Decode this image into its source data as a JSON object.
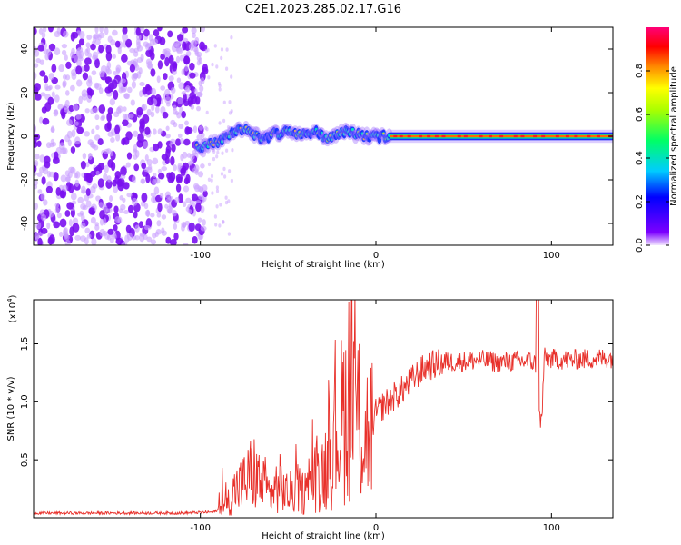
{
  "title": "C2E1.2023.285.02.17.G16",
  "chart_data": [
    {
      "type": "heatmap",
      "xlabel": "Height of straight line (km)",
      "ylabel": "Frequency (Hz)",
      "xlim": [
        -195,
        135
      ],
      "ylim": [
        -50,
        50
      ],
      "xticks": [
        -100,
        0,
        100
      ],
      "yticks": [
        -40,
        -20,
        0,
        20,
        40
      ],
      "xtick_labels": [
        "-100",
        "0",
        "100"
      ],
      "ytick_labels": [
        "-40",
        "-20",
        "0",
        "20",
        "40"
      ],
      "noise_region_x": [
        -195,
        -97
      ],
      "signal_track": {
        "x": [
          -102,
          -95,
          -88,
          -80,
          -72,
          -65,
          -58,
          -50,
          -42,
          -35,
          -28,
          -20,
          -14,
          -8,
          -2,
          8,
          20,
          40,
          60,
          80,
          90,
          100,
          120,
          135
        ],
        "freq_hz": [
          -5,
          -4,
          -2,
          2,
          3,
          -2,
          1,
          2,
          0,
          3,
          -1,
          2,
          2,
          0,
          0,
          0,
          0,
          0,
          0,
          0,
          0,
          0,
          0,
          0
        ]
      },
      "colorbar": {
        "label": "Normalized spectral amplitude",
        "range": [
          0.0,
          1.0
        ],
        "ticks": [
          0.0,
          0.2,
          0.4,
          0.6,
          0.8
        ],
        "tick_labels": [
          "0.0",
          "0.2",
          "0.4",
          "0.6",
          "0.8"
        ]
      }
    },
    {
      "type": "line",
      "xlabel": "Height of straight line (km)",
      "ylabel": "SNR (10 * v/v)",
      "scale_label": "(x10",
      "scale_exp": "4",
      "scale_close": ")",
      "xlim": [
        -195,
        135
      ],
      "ylim": [
        0,
        18800
      ],
      "xticks": [
        -100,
        0,
        100
      ],
      "yticks": [
        5000,
        10000,
        15000
      ],
      "xtick_labels": [
        "-100",
        "0",
        "100"
      ],
      "ytick_labels": [
        "0.5",
        "1.0",
        "1.5"
      ],
      "color": "#e8302a",
      "series": [
        {
          "x": [
            -195,
            -150,
            -110,
            -92,
            -85,
            -80,
            -75,
            -70,
            -65,
            -60,
            -55,
            -50,
            -45,
            -40,
            -35,
            -30,
            -25,
            -22,
            -18,
            -15,
            -12,
            -10,
            -8,
            -5,
            -2,
            0,
            5,
            10,
            15,
            20,
            25,
            30,
            40,
            50,
            60,
            70,
            80,
            88,
            92,
            94,
            96,
            100,
            110,
            120,
            135
          ],
          "y": [
            400,
            400,
            400,
            500,
            1200,
            2500,
            3000,
            4000,
            2800,
            2000,
            3000,
            2000,
            2500,
            2000,
            3500,
            4000,
            6000,
            7500,
            9000,
            11500,
            10500,
            8500,
            7000,
            7500,
            8000,
            9000,
            9800,
            10400,
            11000,
            11800,
            12600,
            13100,
            13400,
            13500,
            13600,
            13400,
            13500,
            13500,
            13200,
            8500,
            13800,
            13700,
            13600,
            13700,
            13800
          ]
        }
      ]
    }
  ]
}
